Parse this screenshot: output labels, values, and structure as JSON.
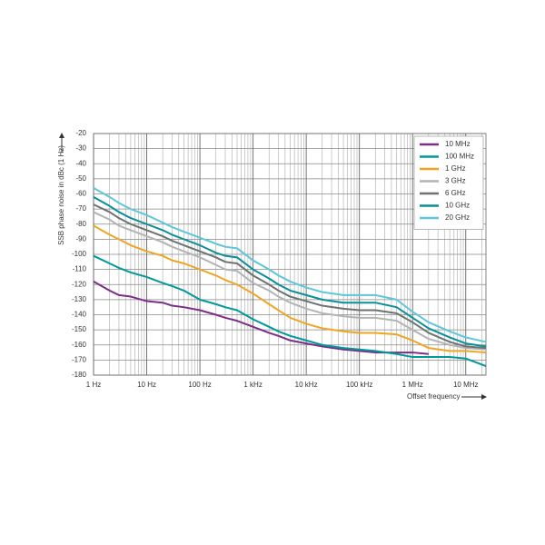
{
  "chart_data": {
    "type": "line",
    "y_label": "SSB phase noise in dBc (1 Hz)",
    "x_label": "Offset frequency",
    "log_x": true,
    "grid": true,
    "legend": "top-right",
    "xlim": [
      1,
      24000000
    ],
    "ylim": [
      -180,
      -20
    ],
    "xticks": [
      {
        "value": 1,
        "label": "1 Hz"
      },
      {
        "value": 10,
        "label": "10 Hz"
      },
      {
        "value": 100,
        "label": "100 Hz"
      },
      {
        "value": 1000,
        "label": "1 kHz"
      },
      {
        "value": 10000,
        "label": "10 kHz"
      },
      {
        "value": 100000,
        "label": "100 kHz"
      },
      {
        "value": 1000000,
        "label": "1 MHz"
      },
      {
        "value": 10000000,
        "label": "10 MHz"
      }
    ],
    "x_minor_ticks": [
      2,
      3,
      4,
      5,
      6,
      7,
      8,
      9,
      20,
      30,
      40,
      50,
      60,
      70,
      80,
      90,
      200,
      300,
      400,
      500,
      600,
      700,
      800,
      900,
      2000,
      3000,
      4000,
      5000,
      6000,
      7000,
      8000,
      9000,
      20000,
      30000,
      40000,
      50000,
      60000,
      70000,
      80000,
      90000,
      200000,
      300000,
      400000,
      500000,
      600000,
      700000,
      800000,
      900000,
      2000000,
      3000000,
      4000000,
      5000000,
      6000000,
      7000000,
      8000000,
      9000000,
      20000000
    ],
    "yticks": [
      -20,
      -30,
      -40,
      -50,
      -60,
      -70,
      -80,
      -90,
      -100,
      -110,
      -120,
      -130,
      -140,
      -150,
      -160,
      -170,
      -180
    ],
    "x": [
      1,
      2,
      3,
      5,
      10,
      20,
      30,
      50,
      100,
      200,
      300,
      500,
      1000,
      2000,
      3000,
      5000,
      10000,
      20000,
      50000,
      100000,
      200000,
      500000,
      1000000,
      2000000,
      5000000,
      10000000,
      24000000
    ],
    "series": [
      {
        "name": "10 MHz",
        "color": "#7b2d87",
        "values": [
          -118,
          -124,
          -127,
          -128,
          -131,
          -132,
          -134,
          -135,
          -137,
          -140,
          -142,
          -144,
          -148,
          -152,
          -154,
          -157,
          -159,
          -161,
          -163,
          -164,
          -165,
          -165,
          -165,
          -166,
          null,
          null,
          null
        ]
      },
      {
        "name": "100 MHz",
        "color": "#00999a",
        "values": [
          -101,
          -106,
          -109,
          -112,
          -115,
          -119,
          -121,
          -124,
          -130,
          -133,
          -135,
          -137,
          -143,
          -148,
          -151,
          -154,
          -157,
          -160,
          -162,
          -163,
          -164,
          -166,
          -168,
          -168,
          -168,
          -169,
          -174
        ]
      },
      {
        "name": "1 GHz",
        "color": "#f0a522",
        "values": [
          -81,
          -87,
          -90,
          -94,
          -98,
          -101,
          -104,
          -106,
          -110,
          -114,
          -117,
          -120,
          -126,
          -133,
          -137,
          -142,
          -146,
          -149,
          -151,
          -152,
          -152,
          -153,
          -157,
          -162,
          -164,
          -164,
          -165
        ]
      },
      {
        "name": "3 GHz",
        "color": "#b3b3b3",
        "values": [
          -72,
          -77,
          -81,
          -84,
          -88,
          -92,
          -95,
          -98,
          -102,
          -107,
          -110,
          -111,
          -119,
          -124,
          -128,
          -132,
          -136,
          -139,
          -141,
          -142,
          -142,
          -144,
          -150,
          -156,
          -160,
          -162,
          -163
        ]
      },
      {
        "name": "6 GHz",
        "color": "#6e7272",
        "values": [
          -67,
          -72,
          -76,
          -80,
          -84,
          -88,
          -91,
          -94,
          -98,
          -102,
          -105,
          -106,
          -114,
          -120,
          -124,
          -128,
          -131,
          -134,
          -136,
          -137,
          -137,
          -139,
          -145,
          -152,
          -158,
          -161,
          -162
        ]
      },
      {
        "name": "10 GHz",
        "color": "#0a8f99",
        "values": [
          -62,
          -68,
          -72,
          -76,
          -80,
          -84,
          -87,
          -90,
          -94,
          -99,
          -101,
          -102,
          -110,
          -116,
          -120,
          -124,
          -127,
          -130,
          -132,
          -132,
          -132,
          -135,
          -142,
          -149,
          -155,
          -159,
          -161
        ]
      },
      {
        "name": "20 GHz",
        "color": "#5cc6da",
        "values": [
          -56,
          -62,
          -66,
          -70,
          -74,
          -79,
          -82,
          -85,
          -89,
          -93,
          -95,
          -96,
          -104,
          -110,
          -114,
          -118,
          -122,
          -125,
          -127,
          -127,
          -127,
          -130,
          -138,
          -145,
          -151,
          -155,
          -158
        ]
      }
    ]
  }
}
